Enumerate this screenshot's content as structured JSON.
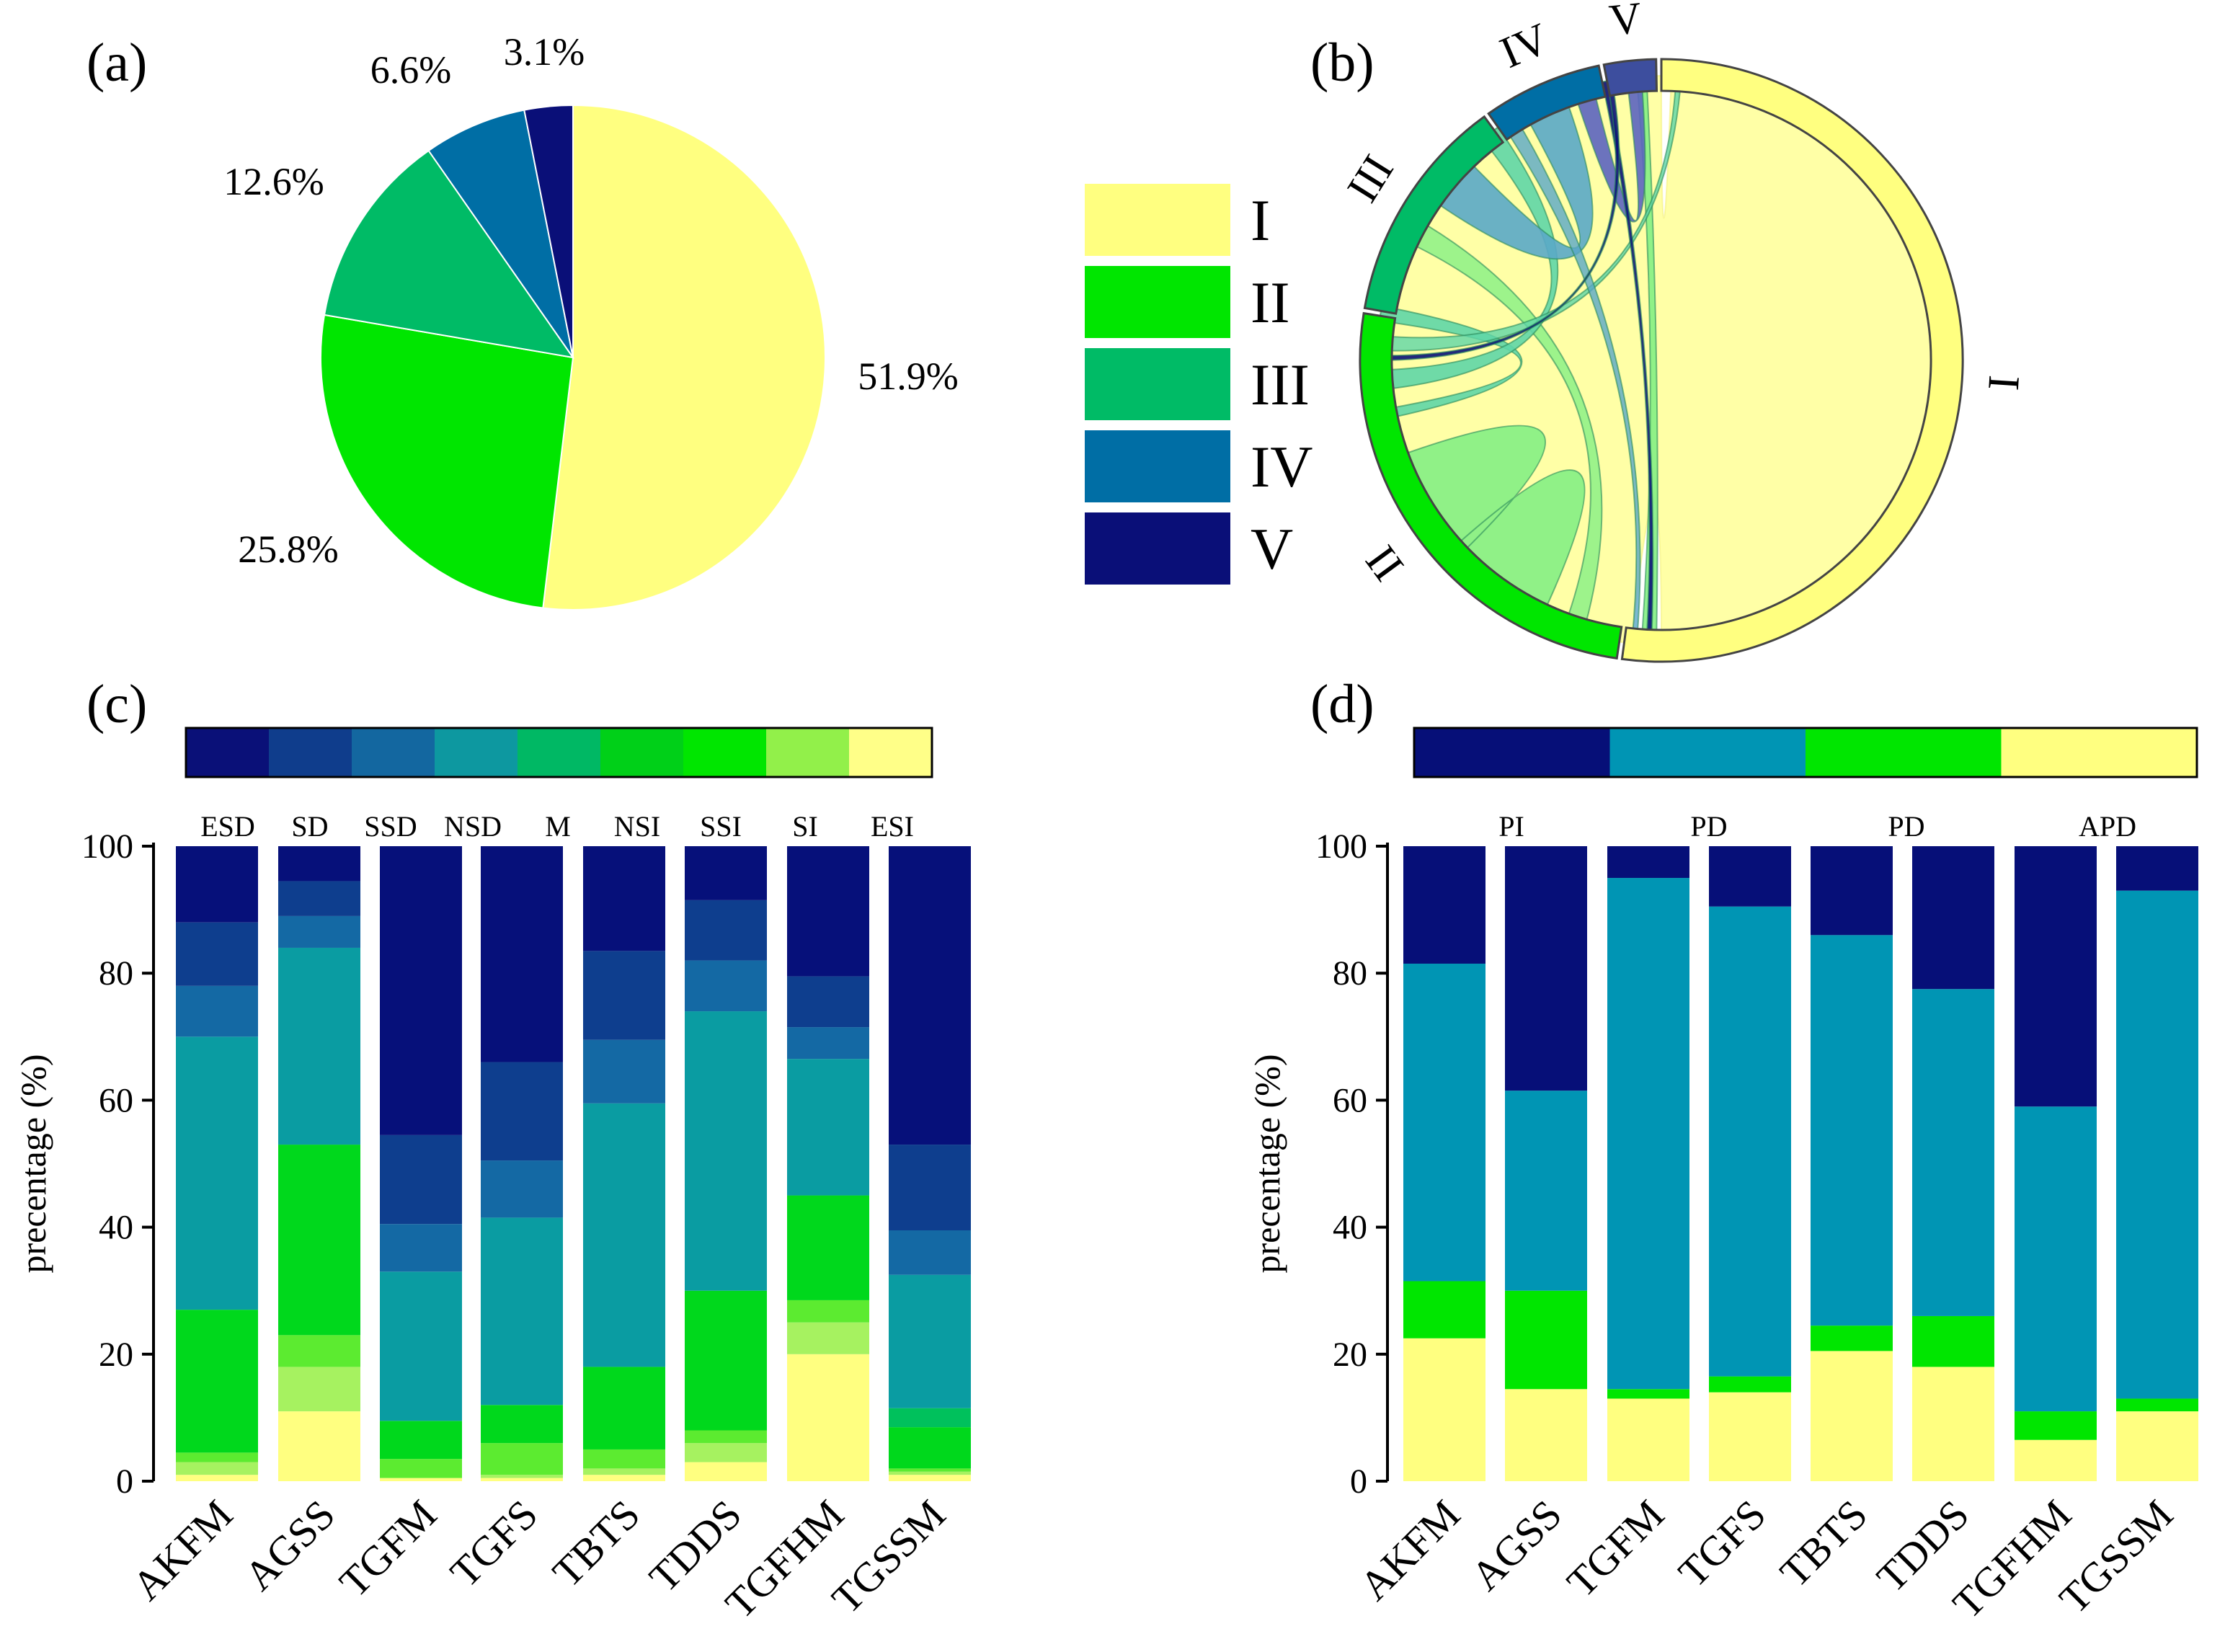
{
  "colors": {
    "c1": "#FFFF80",
    "c2": "#00E600",
    "c3": "#00BB66",
    "c4": "#006EA5",
    "c5": "#0A0F78",
    "fill2": "#84F084",
    "fill3": "#5FD6A7",
    "fill4": "#5AA8C8",
    "fill5": "#5C64C0",
    "d_c5": "#060F78",
    "d_c4": "#0095B4",
    "d_c3": "#00E600",
    "d_c2": "#FFFF80"
  },
  "panel_a": {
    "label": "(a)",
    "chart_data": {
      "type": "pie",
      "categories": [
        "I",
        "II",
        "III",
        "IV",
        "V"
      ],
      "values": [
        51.9,
        25.8,
        12.6,
        6.6,
        3.1
      ],
      "value_labels": [
        "51.9%",
        "25.8%",
        "12.6%",
        "6.6%",
        "3.1%"
      ]
    }
  },
  "legend": {
    "items": [
      {
        "label": "I",
        "color": "#FFFF80"
      },
      {
        "label": "II",
        "color": "#00E600"
      },
      {
        "label": "III",
        "color": "#00BB66"
      },
      {
        "label": "IV",
        "color": "#006EA5"
      },
      {
        "label": "V",
        "color": "#0A0F78"
      }
    ]
  },
  "panel_b": {
    "label": "(b)",
    "chart_data": {
      "type": "chord",
      "groups": [
        "I",
        "II",
        "III",
        "IV",
        "V"
      ],
      "group_shares": [
        51.9,
        25.8,
        12.6,
        6.6,
        3.1
      ]
    }
  },
  "panel_c": {
    "label": "(c)",
    "colorbar_classes": [
      "ESD",
      "SD",
      "SSD",
      "NSD",
      "M",
      "NSI",
      "SSI",
      "SI",
      "ESI"
    ],
    "colorbar_colors": [
      "#0A1078",
      "#0F3D8C",
      "#1367A0",
      "#0D98A0",
      "#00B864",
      "#00D018",
      "#00E600",
      "#92F04A",
      "#FFFF88"
    ],
    "chart_data": {
      "type": "bar",
      "stacked": true,
      "categories": [
        "AKFM",
        "AGSS",
        "TGFM",
        "TGFS",
        "TBTS",
        "TDDS",
        "TGFHM",
        "TGSSM"
      ],
      "series": [
        {
          "name": "ESI",
          "values": [
            1,
            11,
            0.5,
            0.5,
            1,
            3,
            20,
            1
          ]
        },
        {
          "name": "SI",
          "values": [
            2,
            7,
            0,
            0.5,
            1,
            3,
            5,
            0.5
          ]
        },
        {
          "name": "SSI",
          "values": [
            1.5,
            5,
            3,
            5,
            3,
            2,
            3.5,
            0.5
          ]
        },
        {
          "name": "NSI",
          "values": [
            22.5,
            30,
            6,
            6,
            13,
            22,
            16.5,
            6.5
          ]
        },
        {
          "name": "M",
          "values": [
            0,
            0,
            0,
            0,
            0,
            0,
            0,
            3
          ]
        },
        {
          "name": "NSD",
          "values": [
            43,
            31,
            23.5,
            29.5,
            41.5,
            44,
            21.5,
            21
          ]
        },
        {
          "name": "SSD",
          "values": [
            8,
            5,
            7.5,
            9,
            10,
            8,
            5,
            7
          ]
        },
        {
          "name": "SD",
          "values": [
            10,
            5.5,
            14,
            15.5,
            14,
            9.5,
            8,
            13.5
          ]
        },
        {
          "name": "ESD",
          "values": [
            12,
            5.5,
            45.5,
            34,
            16.5,
            8.5,
            20.5,
            47
          ]
        }
      ],
      "ylabel": "precentage (%)",
      "ylim": [
        0,
        100
      ],
      "yticks": [
        0,
        20,
        40,
        60,
        80,
        100
      ]
    }
  },
  "panel_d": {
    "label": "(d)",
    "colorbar_classes": [
      "PI",
      "PD",
      "PD",
      "APD"
    ],
    "colorbar_colors": [
      "#060F78",
      "#0095B4",
      "#00E600",
      "#FFFF80"
    ],
    "chart_data": {
      "type": "bar",
      "stacked": true,
      "categories": [
        "AKFM",
        "AGSS",
        "TGFM",
        "TGFS",
        "TBTS",
        "TDDS",
        "TGFHM",
        "TGSSM"
      ],
      "series": [
        {
          "name": "APD",
          "values": [
            22.5,
            14.5,
            13,
            14,
            20.5,
            18,
            6.5,
            11
          ]
        },
        {
          "name": "PD (increase)",
          "values": [
            9,
            15.5,
            1.5,
            2.5,
            4,
            8,
            4.5,
            2
          ]
        },
        {
          "name": "PD (decrease)",
          "values": [
            50,
            31.5,
            80.5,
            74,
            61.5,
            51.5,
            48,
            80
          ]
        },
        {
          "name": "PI",
          "values": [
            18.5,
            38.5,
            5,
            9.5,
            14,
            22.5,
            41,
            7
          ]
        }
      ],
      "ylabel": "precentage (%)",
      "ylim": [
        0,
        100
      ],
      "yticks": [
        0,
        20,
        40,
        60,
        80,
        100
      ]
    }
  }
}
